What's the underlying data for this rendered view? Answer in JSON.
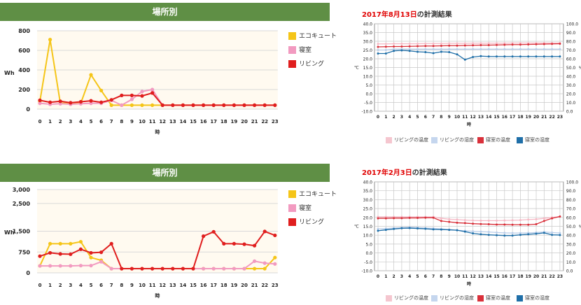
{
  "left_charts": [
    {
      "banner": "場所別",
      "ylabel": "Wh",
      "xlabel": "時",
      "legend": [
        {
          "label": "エコキュート",
          "color": "#f5c518"
        },
        {
          "label": "寝室",
          "color": "#f29ac0"
        },
        {
          "label": "リビング",
          "color": "#e01e1e"
        }
      ]
    },
    {
      "banner": "場所別",
      "ylabel": "Wh",
      "xlabel": "時",
      "legend": [
        {
          "label": "エコキュート",
          "color": "#f5c518"
        },
        {
          "label": "寝室",
          "color": "#f29ac0"
        },
        {
          "label": "リビング",
          "color": "#e01e1e"
        }
      ]
    }
  ],
  "right_charts": [
    {
      "title_date": "2017年8月13日",
      "title_rest": "の計測結果",
      "left_unit": "℃",
      "right_unit": "%",
      "xlabel": "時",
      "legend": [
        {
          "label": "リビングの温度",
          "color": "#f5c6cf"
        },
        {
          "label": "リビングの湿度",
          "color": "#c5d6ee"
        },
        {
          "label": "寝室の温度",
          "color": "#d9303a"
        },
        {
          "label": "寝室の湿度",
          "color": "#1f6fa8"
        }
      ]
    },
    {
      "title_date": "2017年2月3日",
      "title_rest": "の計測結果",
      "left_unit": "℃",
      "right_unit": "%",
      "xlabel": "時",
      "legend": [
        {
          "label": "リビングの温度",
          "color": "#f5c6cf"
        },
        {
          "label": "リビングの湿度",
          "color": "#c5d6ee"
        },
        {
          "label": "寝室の温度",
          "color": "#d9303a"
        },
        {
          "label": "寝室の湿度",
          "color": "#1f6fa8"
        }
      ]
    }
  ],
  "chart_data": [
    {
      "type": "line",
      "title": "場所別",
      "xlabel": "時",
      "ylabel": "Wh",
      "x": [
        0,
        1,
        2,
        3,
        4,
        5,
        6,
        7,
        8,
        9,
        10,
        11,
        12,
        13,
        14,
        15,
        16,
        17,
        18,
        19,
        20,
        21,
        22,
        23
      ],
      "ylim": [
        0,
        800
      ],
      "yticks": [
        0,
        200,
        400,
        600,
        800
      ],
      "ytick_labels": [
        "0",
        "200",
        "400",
        "600",
        "800"
      ],
      "series": [
        {
          "name": "エコキュート",
          "color": "#f5c518",
          "values": [
            80,
            710,
            60,
            60,
            60,
            350,
            190,
            40,
            40,
            40,
            40,
            40,
            40,
            40,
            40,
            40,
            40,
            40,
            40,
            40,
            40,
            40,
            40,
            40
          ]
        },
        {
          "name": "寝室",
          "color": "#f29ac0",
          "values": [
            60,
            50,
            55,
            50,
            55,
            60,
            60,
            90,
            40,
            100,
            180,
            200,
            40,
            40,
            40,
            40,
            40,
            40,
            40,
            40,
            40,
            40,
            40,
            40
          ]
        },
        {
          "name": "リビング",
          "color": "#e01e1e",
          "values": [
            90,
            70,
            80,
            65,
            75,
            85,
            70,
            95,
            140,
            140,
            135,
            165,
            40,
            40,
            40,
            40,
            40,
            40,
            40,
            40,
            40,
            40,
            40,
            40
          ]
        }
      ]
    },
    {
      "type": "line",
      "title": "場所別",
      "xlabel": "時",
      "ylabel": "Wh",
      "x": [
        0,
        1,
        2,
        3,
        4,
        5,
        6,
        7,
        8,
        9,
        10,
        11,
        12,
        13,
        14,
        15,
        16,
        17,
        18,
        19,
        20,
        21,
        22,
        23
      ],
      "ylim": [
        0,
        3000
      ],
      "yticks": [
        0,
        750,
        1500,
        2500,
        3000
      ],
      "ytick_labels": [
        "0",
        "750",
        "1,500",
        "2,500",
        "3,000"
      ],
      "series": [
        {
          "name": "エコキュート",
          "color": "#f5c518",
          "values": [
            250,
            1050,
            1050,
            1050,
            1120,
            550,
            450,
            150,
            150,
            150,
            150,
            150,
            150,
            150,
            150,
            150,
            150,
            150,
            150,
            150,
            150,
            150,
            150,
            550
          ]
        },
        {
          "name": "寝室",
          "color": "#f29ac0",
          "values": [
            250,
            250,
            250,
            250,
            260,
            260,
            400,
            150,
            150,
            150,
            150,
            150,
            150,
            150,
            150,
            150,
            150,
            150,
            150,
            150,
            150,
            420,
            350,
            320
          ]
        },
        {
          "name": "リビング",
          "color": "#e01e1e",
          "values": [
            600,
            720,
            680,
            670,
            850,
            720,
            740,
            1050,
            150,
            150,
            150,
            150,
            150,
            150,
            150,
            150,
            1320,
            1480,
            1050,
            1050,
            1030,
            980,
            1490,
            1350
          ]
        }
      ]
    },
    {
      "type": "line",
      "title": "2017年8月13日の計測結果",
      "xlabel": "時",
      "ylabel": "℃",
      "y2label": "%",
      "x": [
        0,
        1,
        2,
        3,
        4,
        5,
        6,
        7,
        8,
        9,
        10,
        11,
        12,
        13,
        14,
        15,
        16,
        17,
        18,
        19,
        20,
        21,
        22,
        23
      ],
      "ylim": [
        -10,
        40
      ],
      "y2lim": [
        0,
        100
      ],
      "yticks": [
        -10,
        -5,
        0,
        5,
        10,
        15,
        20,
        25,
        30,
        35,
        40
      ],
      "ytick_labels": [
        "-10.0",
        "-5.0",
        "0.0",
        "5.0",
        "10.0",
        "15.0",
        "20.0",
        "25.0",
        "30.0",
        "35.0",
        "40.0"
      ],
      "y2ticks": [
        0,
        10,
        20,
        30,
        40,
        50,
        60,
        70,
        80,
        90,
        100
      ],
      "y2tick_labels": [
        "0.0",
        "10.0",
        "20.0",
        "30.0",
        "40.0",
        "50.0",
        "60.0",
        "70.0",
        "80.0",
        "90.0",
        "100.0"
      ],
      "series": [
        {
          "name": "リビングの温度",
          "axis": "left",
          "color": "#f5b8c4",
          "values": [
            28.5,
            28.5,
            28.6,
            28.6,
            28.6,
            28.6,
            28.7,
            28.7,
            28.7,
            28.8,
            28.8,
            28.8,
            28.9,
            28.9,
            28.9,
            28.9,
            28.9,
            29,
            29,
            29,
            29,
            29,
            29,
            29
          ]
        },
        {
          "name": "リビングの湿度",
          "axis": "left",
          "color": "#b9cde9",
          "values": [
            25,
            25,
            25.5,
            25.5,
            25.5,
            25.5,
            25.5,
            25.5,
            25.5,
            25.5,
            25.5,
            25.5,
            25.5,
            25.5,
            25.5,
            25.5,
            25.5,
            25.5,
            25.5,
            25.5,
            25.5,
            25.5,
            25.5,
            25.5
          ]
        },
        {
          "name": "寝室の温度",
          "axis": "left",
          "color": "#d9303a",
          "values": [
            26.8,
            26.9,
            27,
            27,
            27.1,
            27.2,
            27.3,
            27.3,
            27.4,
            27.5,
            27.5,
            27.6,
            27.7,
            27.8,
            27.8,
            27.9,
            28,
            28.1,
            28.1,
            28.2,
            28.3,
            28.4,
            28.5,
            28.6
          ]
        },
        {
          "name": "寝室の湿度",
          "axis": "left",
          "color": "#1f6fa8",
          "values": [
            23,
            23,
            24.5,
            24.8,
            24.5,
            24,
            23.8,
            23.2,
            24,
            23.8,
            22.5,
            19.5,
            21,
            21.5,
            21.3,
            21.3,
            21.3,
            21.3,
            21.3,
            21.3,
            21.3,
            21.3,
            21.3,
            21.3
          ]
        }
      ]
    },
    {
      "type": "line",
      "title": "2017年2月3日の計測結果",
      "xlabel": "時",
      "ylabel": "℃",
      "y2label": "%",
      "x": [
        0,
        1,
        2,
        3,
        4,
        5,
        6,
        7,
        8,
        9,
        10,
        11,
        12,
        13,
        14,
        15,
        16,
        17,
        18,
        19,
        20,
        21,
        22,
        23
      ],
      "ylim": [
        -10,
        40
      ],
      "y2lim": [
        0,
        100
      ],
      "yticks": [
        -10,
        -5,
        0,
        5,
        10,
        15,
        20,
        25,
        30,
        35,
        40
      ],
      "ytick_labels": [
        "-10.0",
        "-5.0",
        "0.0",
        "5.0",
        "10.0",
        "15.0",
        "20.0",
        "25.0",
        "30.0",
        "35.0",
        "40.0"
      ],
      "y2ticks": [
        0,
        10,
        20,
        30,
        40,
        50,
        60,
        70,
        80,
        90,
        100
      ],
      "y2tick_labels": [
        "0.0",
        "10.0",
        "20.0",
        "30.0",
        "40.0",
        "50.0",
        "60.0",
        "70.0",
        "80.0",
        "90.0",
        "100.0"
      ],
      "series": [
        {
          "name": "リビングの温度",
          "axis": "left",
          "color": "#f5b8c4",
          "values": [
            20.3,
            20.3,
            20.3,
            20.3,
            20.3,
            20.3,
            20.3,
            20.3,
            19.5,
            19,
            18.8,
            18.5,
            18.3,
            18.2,
            18.2,
            18.2,
            18.3,
            18.4,
            18.5,
            18.8,
            19,
            19.5,
            20,
            20.5
          ]
        },
        {
          "name": "リビングの湿度",
          "axis": "left",
          "color": "#b9cde9",
          "values": [
            13.5,
            13.7,
            14,
            14.3,
            14.5,
            14.3,
            14,
            13.8,
            13.5,
            13.2,
            12.8,
            12.5,
            12.2,
            12,
            11.8,
            11.5,
            11.3,
            11.2,
            11.2,
            11.3,
            11.5,
            11.8,
            11.5,
            11.2
          ]
        },
        {
          "name": "寝室の温度",
          "axis": "left",
          "color": "#d9303a",
          "values": [
            19.5,
            19.5,
            19.6,
            19.6,
            19.7,
            19.7,
            19.8,
            19.8,
            18,
            17.5,
            17,
            16.8,
            16.5,
            16.3,
            16.2,
            16,
            16,
            15.9,
            15.9,
            15.9,
            16.2,
            18,
            19.5,
            20.5
          ]
        },
        {
          "name": "寝室の湿度",
          "axis": "left",
          "color": "#1f6fa8",
          "values": [
            12.5,
            13,
            13.5,
            13.9,
            14,
            13.8,
            13.6,
            13.3,
            13.2,
            13,
            12.8,
            12,
            11,
            10.5,
            10.2,
            10,
            9.8,
            9.8,
            10.2,
            10.5,
            10.8,
            11.3,
            10.2,
            10.1
          ]
        }
      ]
    }
  ]
}
